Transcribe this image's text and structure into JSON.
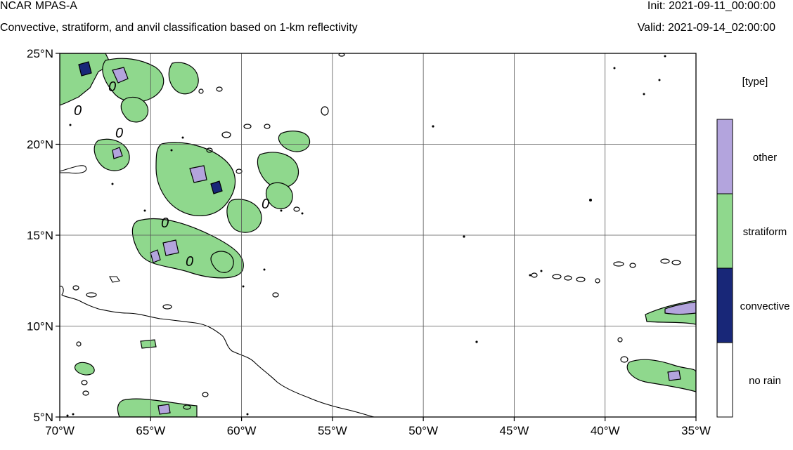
{
  "header": {
    "title_left": "NCAR MPAS-A",
    "subtitle_left": "Convective, stratiform, and anvil classification based on 1-km reflectivity",
    "title_right": "Init: 2021-09-11_00:00:00",
    "subtitle_right": "Valid: 2021-09-14_02:00:00"
  },
  "map": {
    "lon_range": [
      -70,
      -35
    ],
    "lat_range": [
      5,
      25
    ],
    "lon_ticks": [
      "70°W",
      "65°W",
      "60°W",
      "55°W",
      "50°W",
      "45°W",
      "40°W",
      "35°W"
    ],
    "lat_ticks": [
      "25°N",
      "20°N",
      "15°N",
      "10°N",
      "5°N"
    ],
    "grid": true,
    "contour_label": "0"
  },
  "legend": {
    "title": "[type]",
    "categories": [
      {
        "label": "other",
        "color": "#b3a4dd"
      },
      {
        "label": "stratiform",
        "color": "#8fd88d"
      },
      {
        "label": "convective",
        "color": "#182778"
      },
      {
        "label": "no rain",
        "color": "#ffffff"
      }
    ]
  },
  "colors": {
    "coastline": "#000000",
    "gridline": "#555555"
  }
}
